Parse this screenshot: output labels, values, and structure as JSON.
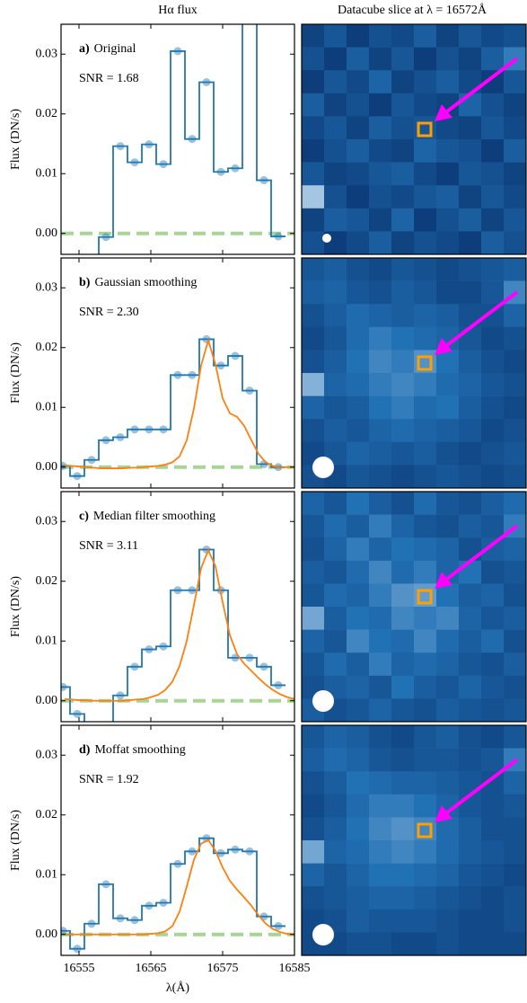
{
  "chart_data": [
    {
      "type": "step",
      "title": "Hα flux",
      "label": "a)",
      "label_text": "Original",
      "annotation": "SNR = 1.68",
      "ylabel": "Flux (DN/s)",
      "xlim": [
        16552.5,
        16585
      ],
      "ylim": [
        -0.0035,
        0.035
      ],
      "xticks": [
        16555,
        16565,
        16575,
        16585
      ],
      "show_xtick_labels": false,
      "yticks": [
        {
          "value": 0,
          "label": "0.00"
        },
        {
          "value": 0.01,
          "label": "0.01"
        },
        {
          "value": 0.02,
          "label": "0.02"
        },
        {
          "value": 0.03,
          "label": "0.03"
        }
      ],
      "reference_line": 0,
      "reference_color": "#a8d596",
      "x": [
        16552.75,
        16554.75,
        16556.75,
        16558.75,
        16560.75,
        16562.75,
        16564.75,
        16566.75,
        16568.75,
        16570.75,
        16572.75,
        16574.75,
        16576.75,
        16578.75,
        16580.75,
        16582.75
      ],
      "series": [
        {
          "color": "#1f77b4",
          "values": [
            -0.006,
            -0.006,
            -0.006,
            -0.0006,
            0.0146,
            0.0119,
            0.0149,
            0.0116,
            0.0305,
            0.0158,
            0.0253,
            0.0103,
            0.0109,
            0.041,
            0.0089,
            -0.0005
          ]
        }
      ]
    },
    {
      "type": "heatmap",
      "title": "Datacube slice at λ = 16572Å",
      "colormap": [
        "#08306b",
        "#2171b5",
        "#c6dbef"
      ],
      "values": [
        [
          0.15,
          0.3,
          0.1,
          0.25,
          0.2,
          0.35,
          0.15,
          0.3,
          0.2,
          0.25
        ],
        [
          0.25,
          0.1,
          0.35,
          0.15,
          0.3,
          0.1,
          0.25,
          0.15,
          0.35,
          0.55
        ],
        [
          0.1,
          0.3,
          0.2,
          0.4,
          0.15,
          0.25,
          0.35,
          0.2,
          0.1,
          0.3
        ],
        [
          0.35,
          0.15,
          0.25,
          0.1,
          0.3,
          0.2,
          0.15,
          0.4,
          0.25,
          0.15
        ],
        [
          0.2,
          0.3,
          0.15,
          0.35,
          0.25,
          0.3,
          0.2,
          0.15,
          0.3,
          0.2
        ],
        [
          0.1,
          0.25,
          0.35,
          0.2,
          0.15,
          0.4,
          0.3,
          0.25,
          0.1,
          0.35
        ],
        [
          0.3,
          0.15,
          0.2,
          0.3,
          0.35,
          0.2,
          0.1,
          0.3,
          0.25,
          0.15
        ],
        [
          0.9,
          0.25,
          0.1,
          0.25,
          0.2,
          0.3,
          0.35,
          0.15,
          0.3,
          0.2
        ],
        [
          0.15,
          0.35,
          0.3,
          0.15,
          0.4,
          0.1,
          0.25,
          0.35,
          0.15,
          0.3
        ],
        [
          0.25,
          0.1,
          0.2,
          0.35,
          0.15,
          0.25,
          0.2,
          0.1,
          0.35,
          0.25
        ]
      ]
    },
    {
      "type": "step",
      "label": "b)",
      "label_text": "Gaussian smoothing",
      "annotation": "SNR = 2.30",
      "ylabel": "Flux (DN/s)",
      "xlim": [
        16552.5,
        16585
      ],
      "ylim": [
        -0.0035,
        0.035
      ],
      "xticks": [
        16555,
        16565,
        16575,
        16585
      ],
      "show_xtick_labels": false,
      "yticks": [
        {
          "value": 0,
          "label": "0.00"
        },
        {
          "value": 0.01,
          "label": "0.01"
        },
        {
          "value": 0.02,
          "label": "0.02"
        },
        {
          "value": 0.03,
          "label": "0.03"
        }
      ],
      "reference_line": 0,
      "reference_color": "#a8d596",
      "x": [
        16552.75,
        16554.75,
        16556.75,
        16558.75,
        16560.75,
        16562.75,
        16564.75,
        16566.75,
        16568.75,
        16570.75,
        16572.75,
        16574.75,
        16576.75,
        16578.75,
        16580.75,
        16582.75
      ],
      "series": [
        {
          "color": "#1f77b4",
          "values": [
            0.0002,
            -0.0015,
            0.0012,
            0.0045,
            0.005,
            0.0063,
            0.0063,
            0.0063,
            0.0154,
            0.0154,
            0.0214,
            0.017,
            0.0186,
            0.0128,
            0.0005,
            0.0
          ]
        }
      ],
      "fit": {
        "color": "#ff7f0e",
        "x": [
          16553,
          16554,
          16555,
          16556,
          16557,
          16558,
          16559,
          16560,
          16561,
          16562,
          16563,
          16564,
          16565,
          16566,
          16567,
          16568,
          16569,
          16570,
          16571,
          16572,
          16573,
          16574,
          16575,
          16576,
          16577,
          16578,
          16579,
          16580,
          16581,
          16582,
          16583,
          16584,
          16585
        ],
        "values": [
          0.0003,
          0.0002,
          0.0001,
          0,
          -0.0001,
          -0.0002,
          -0.0002,
          -0.0002,
          -0.0002,
          -0.0001,
          -0.0001,
          0,
          0.0001,
          0.0002,
          0.0004,
          0.0008,
          0.0018,
          0.0045,
          0.0098,
          0.017,
          0.0212,
          0.0172,
          0.0115,
          0.009,
          0.0084,
          0.0069,
          0.0045,
          0.0022,
          0.0008,
          0.0002,
          -0.0001,
          0,
          0
        ]
      }
    },
    {
      "type": "heatmap",
      "colormap": [
        "#08306b",
        "#2171b5",
        "#c6dbef"
      ],
      "values": [
        [
          0.3,
          0.35,
          0.25,
          0.2,
          0.3,
          0.25,
          0.2,
          0.25,
          0.3,
          0.35
        ],
        [
          0.35,
          0.4,
          0.3,
          0.25,
          0.35,
          0.3,
          0.2,
          0.2,
          0.3,
          0.6
        ],
        [
          0.25,
          0.35,
          0.45,
          0.4,
          0.35,
          0.4,
          0.35,
          0.25,
          0.25,
          0.4
        ],
        [
          0.2,
          0.3,
          0.45,
          0.55,
          0.5,
          0.45,
          0.4,
          0.3,
          0.2,
          0.25
        ],
        [
          0.25,
          0.35,
          0.5,
          0.6,
          0.55,
          0.65,
          0.5,
          0.35,
          0.25,
          0.2
        ],
        [
          0.8,
          0.4,
          0.45,
          0.55,
          0.6,
          0.55,
          0.45,
          0.4,
          0.3,
          0.25
        ],
        [
          0.4,
          0.3,
          0.35,
          0.5,
          0.55,
          0.45,
          0.5,
          0.35,
          0.25,
          0.2
        ],
        [
          0.25,
          0.35,
          0.3,
          0.4,
          0.45,
          0.4,
          0.35,
          0.3,
          0.2,
          0.25
        ],
        [
          0.2,
          0.3,
          0.4,
          0.35,
          0.3,
          0.35,
          0.25,
          0.2,
          0.25,
          0.3
        ],
        [
          0.25,
          0.2,
          0.3,
          0.25,
          0.2,
          0.25,
          0.3,
          0.25,
          0.2,
          0.25
        ]
      ]
    },
    {
      "type": "step",
      "label": "c)",
      "label_text": "Median filter smoothing",
      "annotation": "SNR = 3.11",
      "ylabel": "Flux (DN/s)",
      "xlim": [
        16552.5,
        16585
      ],
      "ylim": [
        -0.0035,
        0.035
      ],
      "xticks": [
        16555,
        16565,
        16575,
        16585
      ],
      "show_xtick_labels": false,
      "yticks": [
        {
          "value": 0,
          "label": "0.00"
        },
        {
          "value": 0.01,
          "label": "0.01"
        },
        {
          "value": 0.02,
          "label": "0.02"
        },
        {
          "value": 0.03,
          "label": "0.03"
        }
      ],
      "reference_line": 0,
      "reference_color": "#a8d596",
      "x": [
        16552.75,
        16554.75,
        16556.75,
        16558.75,
        16560.75,
        16562.75,
        16564.75,
        16566.75,
        16568.75,
        16570.75,
        16572.75,
        16574.75,
        16576.75,
        16578.75,
        16580.75,
        16582.75
      ],
      "series": [
        {
          "color": "#1f77b4",
          "values": [
            0.0023,
            -0.0022,
            -0.005,
            -0.005,
            0.0009,
            0.0057,
            0.0086,
            0.0091,
            0.0185,
            0.0185,
            0.0253,
            0.0185,
            0.0072,
            0.0072,
            0.0057,
            0.0026
          ]
        }
      ],
      "fit": {
        "color": "#ff7f0e",
        "x": [
          16553,
          16554,
          16555,
          16556,
          16557,
          16558,
          16559,
          16560,
          16561,
          16562,
          16563,
          16564,
          16565,
          16566,
          16567,
          16568,
          16569,
          16570,
          16571,
          16572,
          16573,
          16574,
          16575,
          16576,
          16577,
          16578,
          16579,
          16580,
          16581,
          16582,
          16583,
          16584,
          16585
        ],
        "values": [
          0.0003,
          0.0002,
          0.0001,
          0.0001,
          0,
          0,
          0,
          0,
          0,
          0.0001,
          0.0002,
          0.0003,
          0.0006,
          0.001,
          0.0018,
          0.0032,
          0.0058,
          0.01,
          0.016,
          0.0222,
          0.0252,
          0.0225,
          0.0165,
          0.011,
          0.0078,
          0.0062,
          0.005,
          0.0038,
          0.0027,
          0.0018,
          0.0011,
          0.0006,
          0.0003
        ]
      }
    },
    {
      "type": "heatmap",
      "colormap": [
        "#08306b",
        "#2171b5",
        "#c6dbef"
      ],
      "values": [
        [
          0.4,
          0.3,
          0.5,
          0.35,
          0.25,
          0.45,
          0.3,
          0.25,
          0.35,
          0.45
        ],
        [
          0.3,
          0.45,
          0.35,
          0.55,
          0.4,
          0.3,
          0.25,
          0.35,
          0.3,
          0.55
        ],
        [
          0.25,
          0.4,
          0.55,
          0.4,
          0.5,
          0.45,
          0.4,
          0.25,
          0.35,
          0.4
        ],
        [
          0.35,
          0.3,
          0.45,
          0.6,
          0.45,
          0.55,
          0.4,
          0.5,
          0.25,
          0.3
        ],
        [
          0.3,
          0.45,
          0.4,
          0.55,
          0.65,
          0.7,
          0.5,
          0.35,
          0.4,
          0.25
        ],
        [
          0.75,
          0.35,
          0.5,
          0.45,
          0.6,
          0.55,
          0.6,
          0.4,
          0.3,
          0.35
        ],
        [
          0.4,
          0.3,
          0.6,
          0.5,
          0.45,
          0.6,
          0.45,
          0.35,
          0.45,
          0.25
        ],
        [
          0.3,
          0.45,
          0.35,
          0.55,
          0.4,
          0.45,
          0.4,
          0.3,
          0.25,
          0.35
        ],
        [
          0.25,
          0.35,
          0.4,
          0.3,
          0.5,
          0.35,
          0.3,
          0.4,
          0.3,
          0.25
        ],
        [
          0.35,
          0.25,
          0.3,
          0.4,
          0.3,
          0.25,
          0.35,
          0.3,
          0.25,
          0.3
        ]
      ]
    },
    {
      "type": "step",
      "label": "d)",
      "label_text": "Moffat smoothing",
      "annotation": "SNR = 1.92",
      "ylabel": "Flux (DN/s)",
      "xlabel": "λ(Å)",
      "xlim": [
        16552.5,
        16585
      ],
      "ylim": [
        -0.0035,
        0.035
      ],
      "xticks": [
        16555,
        16565,
        16575,
        16585
      ],
      "show_xtick_labels": true,
      "yticks": [
        {
          "value": 0,
          "label": "0.00"
        },
        {
          "value": 0.01,
          "label": "0.01"
        },
        {
          "value": 0.02,
          "label": "0.02"
        },
        {
          "value": 0.03,
          "label": "0.03"
        }
      ],
      "reference_line": 0,
      "reference_color": "#a8d596",
      "x": [
        16552.75,
        16554.75,
        16556.75,
        16558.75,
        16560.75,
        16562.75,
        16564.75,
        16566.75,
        16568.75,
        16570.75,
        16572.75,
        16574.75,
        16576.75,
        16578.75,
        16580.75,
        16582.75
      ],
      "series": [
        {
          "color": "#1f77b4",
          "values": [
            0.0006,
            -0.0024,
            0.0018,
            0.0084,
            0.0027,
            0.0024,
            0.0048,
            0.0053,
            0.0118,
            0.0139,
            0.0161,
            0.0136,
            0.0142,
            0.0139,
            0.003,
            0.0014
          ]
        }
      ],
      "fit": {
        "color": "#ff7f0e",
        "x": [
          16553,
          16554,
          16555,
          16556,
          16557,
          16558,
          16559,
          16560,
          16561,
          16562,
          16563,
          16564,
          16565,
          16566,
          16567,
          16568,
          16569,
          16570,
          16571,
          16572,
          16573,
          16574,
          16575,
          16576,
          16577,
          16578,
          16579,
          16580,
          16581,
          16582,
          16583,
          16584,
          16585
        ],
        "values": [
          0,
          0,
          0,
          0,
          0,
          0,
          0,
          0,
          0,
          0,
          0,
          0,
          0.0001,
          0.0002,
          0.0005,
          0.0014,
          0.0038,
          0.008,
          0.0125,
          0.0152,
          0.0158,
          0.014,
          0.0112,
          0.009,
          0.0075,
          0.0062,
          0.0048,
          0.0032,
          0.0018,
          0.0009,
          0.0004,
          0.0001,
          0
        ]
      }
    },
    {
      "type": "heatmap",
      "colormap": [
        "#08306b",
        "#2171b5",
        "#c6dbef"
      ],
      "values": [
        [
          0.3,
          0.4,
          0.35,
          0.25,
          0.2,
          0.3,
          0.35,
          0.25,
          0.2,
          0.3
        ],
        [
          0.35,
          0.45,
          0.4,
          0.3,
          0.25,
          0.3,
          0.3,
          0.25,
          0.3,
          0.55
        ],
        [
          0.25,
          0.35,
          0.5,
          0.45,
          0.4,
          0.4,
          0.35,
          0.3,
          0.25,
          0.4
        ],
        [
          0.2,
          0.3,
          0.45,
          0.55,
          0.55,
          0.5,
          0.4,
          0.3,
          0.25,
          0.3
        ],
        [
          0.25,
          0.35,
          0.5,
          0.6,
          0.65,
          0.6,
          0.45,
          0.35,
          0.25,
          0.25
        ],
        [
          0.75,
          0.4,
          0.45,
          0.55,
          0.6,
          0.55,
          0.45,
          0.35,
          0.3,
          0.25
        ],
        [
          0.4,
          0.3,
          0.4,
          0.5,
          0.5,
          0.45,
          0.4,
          0.3,
          0.25,
          0.2
        ],
        [
          0.25,
          0.3,
          0.35,
          0.4,
          0.4,
          0.35,
          0.3,
          0.25,
          0.2,
          0.25
        ],
        [
          0.2,
          0.25,
          0.35,
          0.3,
          0.3,
          0.3,
          0.25,
          0.2,
          0.2,
          0.25
        ],
        [
          0.2,
          0.2,
          0.25,
          0.25,
          0.2,
          0.2,
          0.25,
          0.2,
          0.2,
          0.2
        ]
      ]
    }
  ]
}
